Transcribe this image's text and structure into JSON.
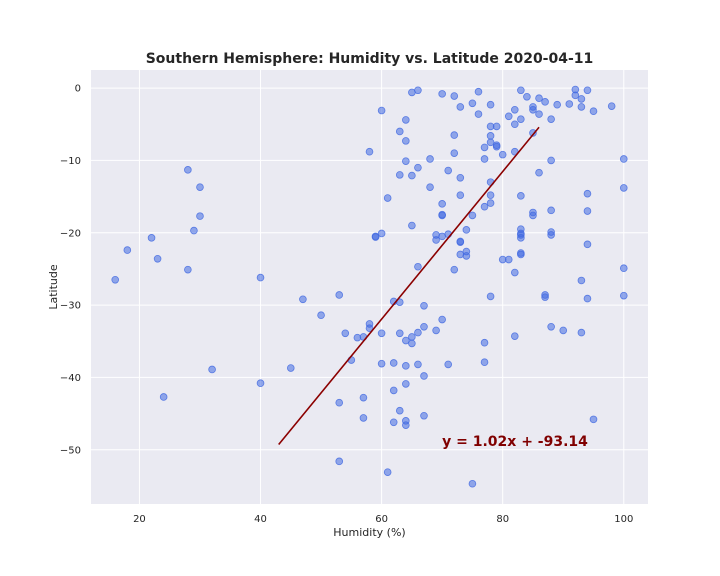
{
  "chart_data": {
    "type": "scatter",
    "title": "Southern Hemisphere: Humidity vs. Latitude 2020-04-11",
    "xlabel": "Humidity (%)",
    "ylabel": "Latitude",
    "xlim": [
      12,
      104
    ],
    "ylim": [
      -57.5,
      2.5
    ],
    "xticks": [
      20,
      40,
      60,
      80,
      100
    ],
    "yticks": [
      0,
      -10,
      -20,
      -30,
      -40,
      -50
    ],
    "grid": true,
    "background": "#eaeaf2",
    "point_color": "#4169e1",
    "line_color": "#8b0000",
    "equation_color": "#800000",
    "regression": {
      "slope": 1.02,
      "intercept": -93.14,
      "x_range": [
        43,
        86
      ],
      "equation": "y = 1.02x + -93.14",
      "label_pos": [
        70,
        -49.5
      ]
    },
    "points": [
      [
        16,
        -26.5
      ],
      [
        18,
        -22.4
      ],
      [
        22,
        -20.7
      ],
      [
        23,
        -23.6
      ],
      [
        24,
        -42.7
      ],
      [
        28,
        -11.3
      ],
      [
        28,
        -25.1
      ],
      [
        29,
        -19.7
      ],
      [
        30,
        -13.7
      ],
      [
        30,
        -17.7
      ],
      [
        32,
        -38.9
      ],
      [
        40,
        -26.2
      ],
      [
        40,
        -40.8
      ],
      [
        45,
        -38.7
      ],
      [
        47,
        -29.2
      ],
      [
        50,
        -31.4
      ],
      [
        53,
        -28.6
      ],
      [
        53,
        -43.5
      ],
      [
        53,
        -51.6
      ],
      [
        54,
        -33.9
      ],
      [
        55,
        -37.6
      ],
      [
        56,
        -34.5
      ],
      [
        57,
        -34.4
      ],
      [
        57,
        -42.8
      ],
      [
        57,
        -45.6
      ],
      [
        58,
        -8.8
      ],
      [
        58,
        -32.6
      ],
      [
        58,
        -33.2
      ],
      [
        59,
        -20.5
      ],
      [
        59,
        -20.6
      ],
      [
        60,
        -3.1
      ],
      [
        60,
        -20.1
      ],
      [
        60,
        -33.9
      ],
      [
        60,
        -38.1
      ],
      [
        61,
        -15.2
      ],
      [
        61,
        -53.1
      ],
      [
        62,
        -29.5
      ],
      [
        62,
        -38.0
      ],
      [
        62,
        -41.8
      ],
      [
        62,
        -46.2
      ],
      [
        63,
        -6.0
      ],
      [
        63,
        -12.0
      ],
      [
        63,
        -29.6
      ],
      [
        63,
        -33.9
      ],
      [
        63,
        -44.6
      ],
      [
        64,
        -4.4
      ],
      [
        64,
        -7.3
      ],
      [
        64,
        -10.1
      ],
      [
        64,
        -34.9
      ],
      [
        64,
        -38.4
      ],
      [
        64,
        -40.9
      ],
      [
        64,
        -46.0
      ],
      [
        64,
        -46.6
      ],
      [
        65,
        -0.6
      ],
      [
        65,
        -12.1
      ],
      [
        65,
        -19.0
      ],
      [
        65,
        -34.4
      ],
      [
        65,
        -35.3
      ],
      [
        66,
        -0.3
      ],
      [
        66,
        -11.0
      ],
      [
        66,
        -24.7
      ],
      [
        66,
        -33.8
      ],
      [
        66,
        -38.2
      ],
      [
        67,
        -30.1
      ],
      [
        67,
        -33.0
      ],
      [
        67,
        -39.8
      ],
      [
        67,
        -45.3
      ],
      [
        68,
        -9.8
      ],
      [
        68,
        -13.7
      ],
      [
        69,
        -21.0
      ],
      [
        69,
        -20.3
      ],
      [
        69,
        -33.5
      ],
      [
        70,
        -0.8
      ],
      [
        70,
        -16.0
      ],
      [
        70,
        -17.6
      ],
      [
        70,
        -17.5
      ],
      [
        70,
        -20.5
      ],
      [
        70,
        -32.0
      ],
      [
        71,
        -11.4
      ],
      [
        71,
        -20.2
      ],
      [
        71,
        -38.2
      ],
      [
        72,
        -1.1
      ],
      [
        72,
        -6.5
      ],
      [
        72,
        -9.0
      ],
      [
        72,
        -25.1
      ],
      [
        73,
        -2.6
      ],
      [
        73,
        -12.4
      ],
      [
        73,
        -14.8
      ],
      [
        73,
        -21.2
      ],
      [
        73,
        -21.3
      ],
      [
        73,
        -23.0
      ],
      [
        74,
        -19.6
      ],
      [
        74,
        -22.6
      ],
      [
        74,
        -23.2
      ],
      [
        75,
        -2.1
      ],
      [
        75,
        -17.6
      ],
      [
        75,
        -54.7
      ],
      [
        76,
        -0.5
      ],
      [
        76,
        -3.6
      ],
      [
        77,
        -8.2
      ],
      [
        77,
        -9.8
      ],
      [
        77,
        -16.4
      ],
      [
        77,
        -35.2
      ],
      [
        77,
        -37.9
      ],
      [
        78,
        -2.3
      ],
      [
        78,
        -5.3
      ],
      [
        78,
        -6.6
      ],
      [
        78,
        -7.5
      ],
      [
        78,
        -13.0
      ],
      [
        78,
        -14.8
      ],
      [
        78,
        -15.9
      ],
      [
        78,
        -28.8
      ],
      [
        79,
        -5.3
      ],
      [
        79,
        -8.1
      ],
      [
        79,
        -7.9
      ],
      [
        80,
        -9.2
      ],
      [
        80,
        -23.7
      ],
      [
        81,
        -3.9
      ],
      [
        81,
        -23.7
      ],
      [
        82,
        -3.0
      ],
      [
        82,
        -5.0
      ],
      [
        82,
        -8.8
      ],
      [
        82,
        -25.5
      ],
      [
        82,
        -34.3
      ],
      [
        83,
        -0.3
      ],
      [
        83,
        -4.3
      ],
      [
        83,
        -14.9
      ],
      [
        83,
        -19.5
      ],
      [
        83,
        -20.1
      ],
      [
        83,
        -20.3
      ],
      [
        83,
        -20.7
      ],
      [
        83,
        -22.8
      ],
      [
        83,
        -23.0
      ],
      [
        84,
        -1.2
      ],
      [
        85,
        -2.6
      ],
      [
        85,
        -3.0
      ],
      [
        85,
        -6.2
      ],
      [
        85,
        -17.2
      ],
      [
        85,
        -17.6
      ],
      [
        86,
        -1.4
      ],
      [
        86,
        -3.6
      ],
      [
        86,
        -11.7
      ],
      [
        87,
        -1.9
      ],
      [
        87,
        -28.6
      ],
      [
        87,
        -28.9
      ],
      [
        88,
        -4.3
      ],
      [
        88,
        -10.0
      ],
      [
        88,
        -16.9
      ],
      [
        88,
        -19.9
      ],
      [
        88,
        -20.3
      ],
      [
        88,
        -33.0
      ],
      [
        89,
        -2.3
      ],
      [
        90,
        -33.5
      ],
      [
        91,
        -2.2
      ],
      [
        92,
        -0.2
      ],
      [
        92,
        -1.0
      ],
      [
        93,
        -1.5
      ],
      [
        93,
        -2.6
      ],
      [
        93,
        -26.6
      ],
      [
        93,
        -33.8
      ],
      [
        94,
        -0.3
      ],
      [
        94,
        -14.6
      ],
      [
        94,
        -17.0
      ],
      [
        94,
        -21.6
      ],
      [
        94,
        -29.1
      ],
      [
        95,
        -3.2
      ],
      [
        95,
        -45.8
      ],
      [
        98,
        -2.5
      ],
      [
        100,
        -9.8
      ],
      [
        100,
        -13.8
      ],
      [
        100,
        -24.9
      ],
      [
        100,
        -28.7
      ]
    ]
  }
}
